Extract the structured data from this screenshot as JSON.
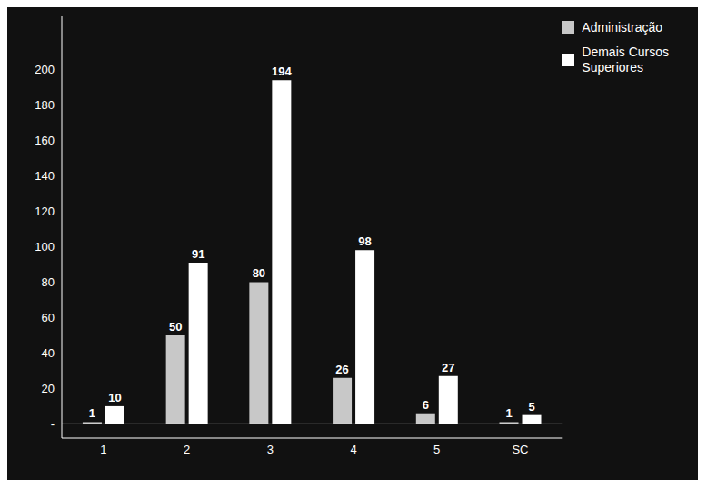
{
  "chart_data": {
    "type": "bar",
    "categories": [
      "1",
      "2",
      "3",
      "4",
      "5",
      "SC"
    ],
    "series": [
      {
        "name": "Administração",
        "color": "#c8c8c8",
        "values": [
          1,
          50,
          80,
          26,
          6,
          1
        ]
      },
      {
        "name": "Demais Cursos\nSuperiores",
        "color": "#ffffff",
        "values": [
          10,
          91,
          194,
          98,
          27,
          5
        ]
      }
    ],
    "ylim": [
      -8,
      230
    ],
    "yticks": [
      {
        "value": 0,
        "label": "-"
      },
      20,
      40,
      60,
      80,
      100,
      120,
      140,
      160,
      180,
      200
    ],
    "grid": false,
    "legend": "upper right",
    "data_labels": true
  }
}
